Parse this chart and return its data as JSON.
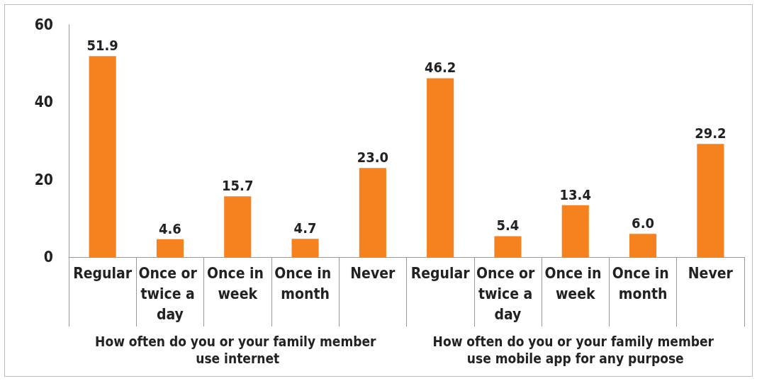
{
  "chart_data": {
    "type": "bar",
    "categories": [
      "Regular",
      "Once or twice a day",
      "Once in week",
      "Once in month",
      "Never",
      "Regular",
      "Once or twice a day",
      "Once in week",
      "Once in month",
      "Never"
    ],
    "values": [
      51.9,
      4.6,
      15.7,
      4.7,
      23.0,
      46.2,
      5.4,
      13.4,
      6.0,
      29.2
    ],
    "color": "#f5821f",
    "ylim": [
      0,
      60
    ],
    "yticks": [
      0,
      20,
      40,
      60
    ],
    "value_labels": [
      "51.9",
      "4.6",
      "15.7",
      "4.7",
      "23.0",
      "46.2",
      "5.4",
      "13.4",
      "6.0",
      "29.2"
    ],
    "grid": false,
    "annotations": [
      "How often do you or your family member use internet",
      "How often do you or your family member use mobile app for any purpose"
    ]
  }
}
